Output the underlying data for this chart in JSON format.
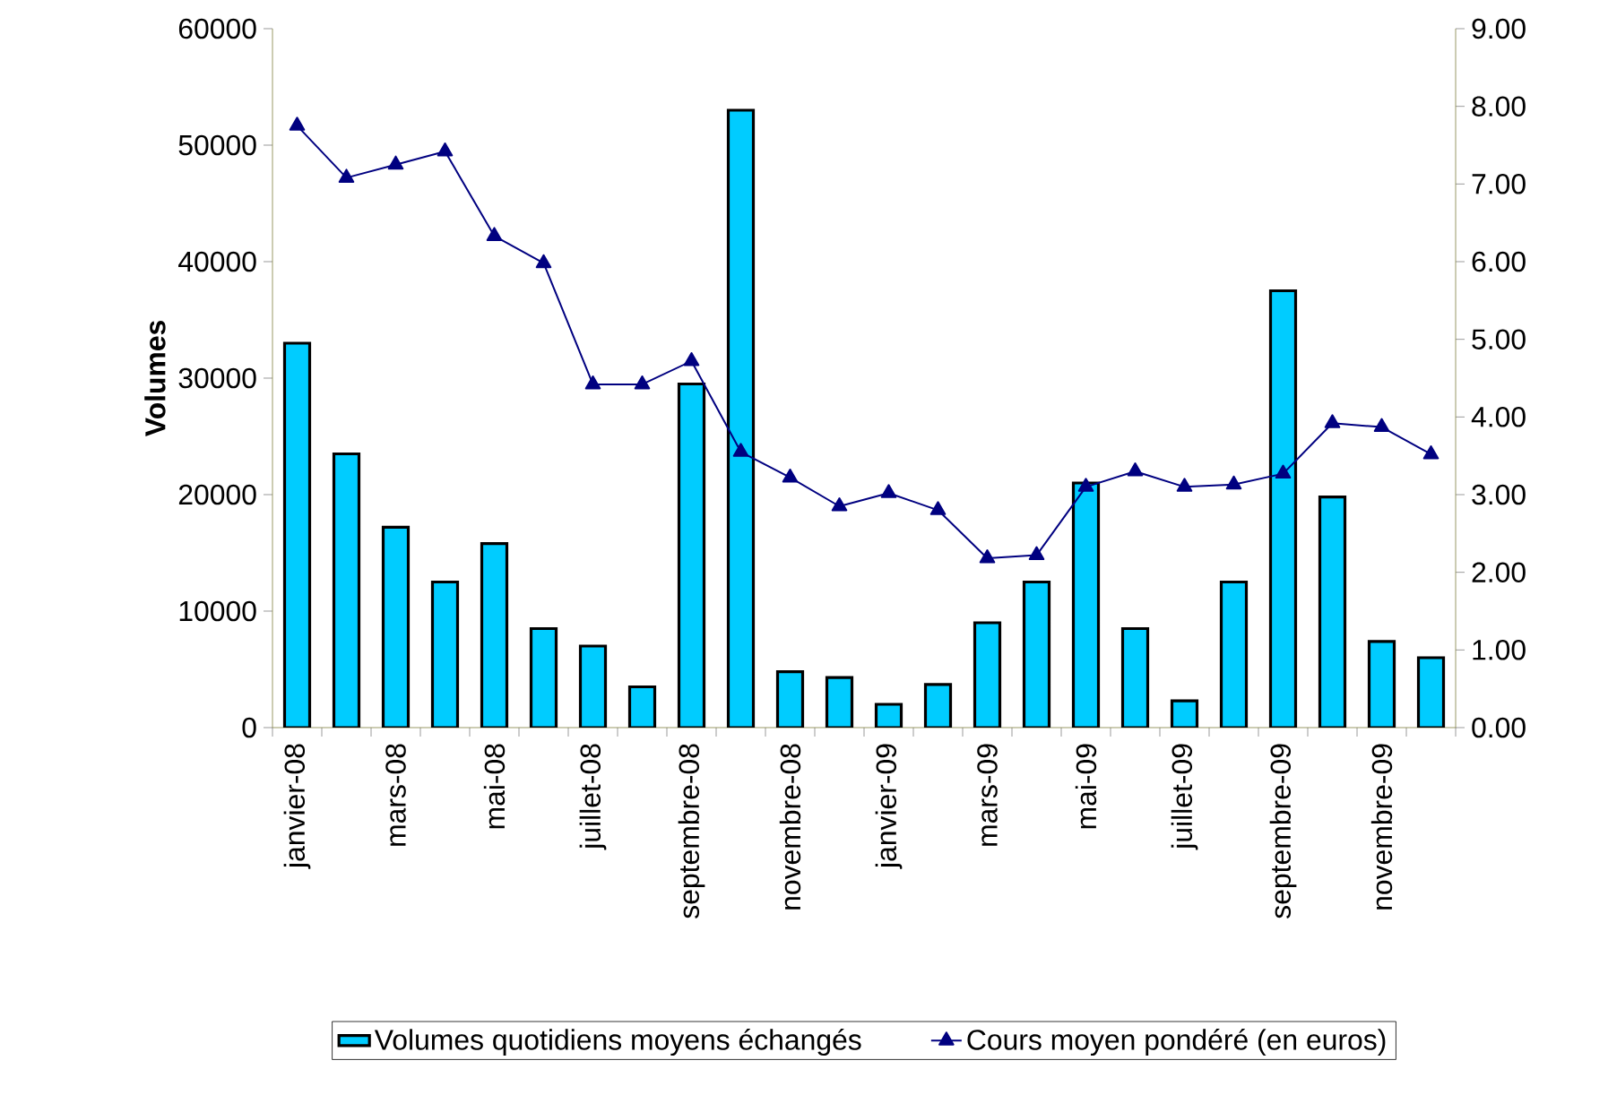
{
  "chart_data": {
    "type": "bar",
    "ylabel": "Volumes",
    "categories": [
      "janvier-08",
      null,
      "mars-08",
      null,
      "mai-08",
      null,
      "juillet-08",
      null,
      "septembre-08",
      null,
      "novembre-08",
      null,
      "janvier-09",
      null,
      "mars-09",
      null,
      "mai-09",
      null,
      "juillet-09",
      null,
      "septembre-09",
      null,
      "novembre-09",
      null
    ],
    "series": [
      {
        "name": "Volumes quotidiens moyens échangés",
        "color": "#00ccff",
        "values": [
          33000,
          23500,
          17200,
          12500,
          15800,
          8500,
          7000,
          3500,
          29500,
          53000,
          4800,
          4300,
          2000,
          3700,
          9000,
          12500,
          21000,
          8500,
          2300,
          12500,
          37500,
          19800,
          7400,
          6000
        ]
      },
      {
        "name": "Cours moyen pondéré (en euros)",
        "type": "line",
        "axis": "y2",
        "color": "#000080",
        "values": [
          7.75,
          7.08,
          7.25,
          7.42,
          6.33,
          5.98,
          4.42,
          4.42,
          4.72,
          3.55,
          3.22,
          2.85,
          3.02,
          2.8,
          2.18,
          2.22,
          3.1,
          3.3,
          3.1,
          3.13,
          3.27,
          3.92,
          3.87,
          3.52
        ]
      }
    ],
    "ylim": [
      0,
      60000
    ],
    "yticks": [
      0,
      10000,
      20000,
      30000,
      40000,
      50000,
      60000
    ],
    "y2lim": [
      0,
      9
    ],
    "y2ticks": [
      {
        "value": 0,
        "label": "0.00"
      },
      {
        "value": 1,
        "label": "1.00"
      },
      {
        "value": 2,
        "label": "2.00"
      },
      {
        "value": 3,
        "label": "3.00"
      },
      {
        "value": 4,
        "label": "4.00"
      },
      {
        "value": 5,
        "label": "5.00"
      },
      {
        "value": 6,
        "label": "6.00"
      },
      {
        "value": 7,
        "label": "7.00"
      },
      {
        "value": 8,
        "label": "8.00"
      },
      {
        "value": 9,
        "label": "9.00"
      }
    ],
    "marker": "triangle",
    "legend": "bottom",
    "grid": false
  }
}
